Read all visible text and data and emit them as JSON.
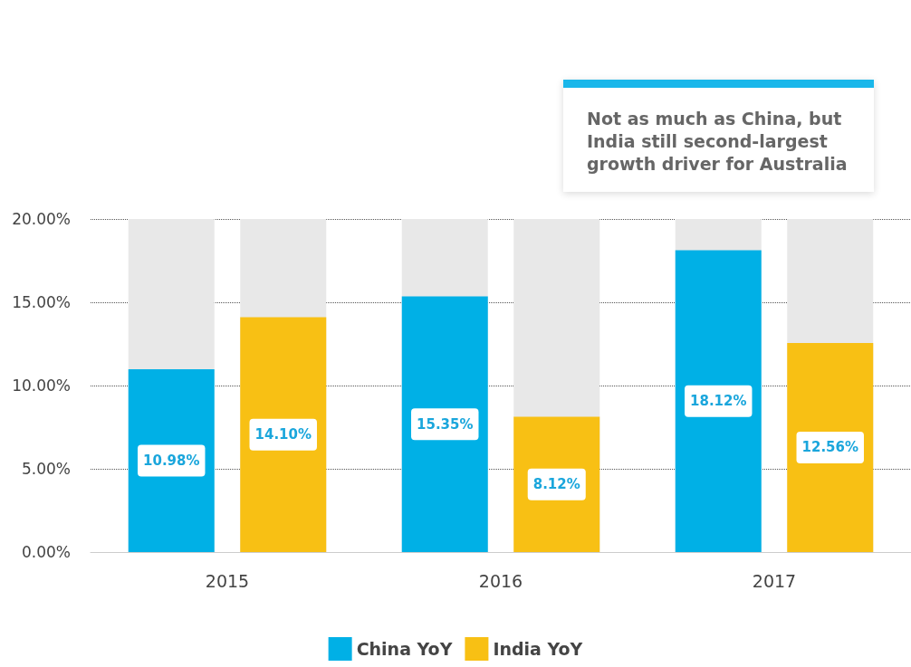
{
  "chart_data": {
    "type": "bar",
    "categories": [
      "2015",
      "2016",
      "2017"
    ],
    "series": [
      {
        "name": "China YoY",
        "color": "#00b0e6",
        "values": [
          10.98,
          15.35,
          18.12
        ],
        "value_labels": [
          "10.98%",
          "15.35%",
          "18.12%"
        ]
      },
      {
        "name": "India YoY",
        "color": "#f8c014",
        "values": [
          14.1,
          8.12,
          12.56
        ],
        "value_labels": [
          "14.10%",
          "8.12%",
          "12.56%"
        ]
      }
    ],
    "ylim": [
      0,
      20
    ],
    "yticks": [
      {
        "value": 0,
        "label": "0.00%"
      },
      {
        "value": 5,
        "label": "5.00%"
      },
      {
        "value": 10,
        "label": "10.00%"
      },
      {
        "value": 15,
        "label": "15.00%"
      },
      {
        "value": 20,
        "label": "20.00%"
      }
    ],
    "grid": "y",
    "legend": "bottom",
    "annotations": [
      "Not as much as China, but India still second-largest growth driver for Australia"
    ]
  }
}
